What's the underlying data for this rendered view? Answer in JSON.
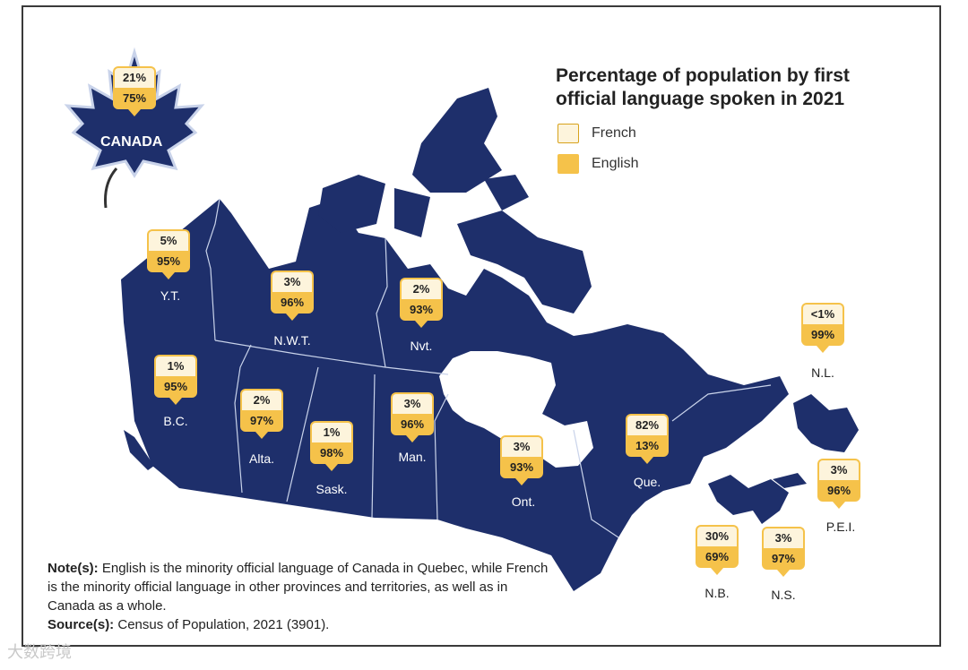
{
  "title": "Percentage of population by first official language spoken in 2021",
  "legend": [
    {
      "label": "French",
      "color": "#fdf4dc"
    },
    {
      "label": "English",
      "color": "#f5c24a"
    }
  ],
  "colors": {
    "land": "#1e2f6b",
    "english": "#f5c24a",
    "french": "#fdf4dc"
  },
  "canada": {
    "label": "CANADA",
    "french": "21%",
    "english": "75%"
  },
  "regions": [
    {
      "id": "yt",
      "label": "Y.T.",
      "french": "5%",
      "english": "95%"
    },
    {
      "id": "nwt",
      "label": "N.W.T.",
      "french": "3%",
      "english": "96%"
    },
    {
      "id": "nvt",
      "label": "Nvt.",
      "french": "2%",
      "english": "93%"
    },
    {
      "id": "bc",
      "label": "B.C.",
      "french": "1%",
      "english": "95%"
    },
    {
      "id": "alta",
      "label": "Alta.",
      "french": "2%",
      "english": "97%"
    },
    {
      "id": "sask",
      "label": "Sask.",
      "french": "1%",
      "english": "98%"
    },
    {
      "id": "man",
      "label": "Man.",
      "french": "3%",
      "english": "96%"
    },
    {
      "id": "ont",
      "label": "Ont.",
      "french": "3%",
      "english": "93%"
    },
    {
      "id": "que",
      "label": "Que.",
      "french": "82%",
      "english": "13%"
    },
    {
      "id": "nl",
      "label": "N.L.",
      "french": "<1%",
      "english": "99%"
    },
    {
      "id": "pei",
      "label": "P.E.I.",
      "french": "3%",
      "english": "96%"
    },
    {
      "id": "nb",
      "label": "N.B.",
      "french": "30%",
      "english": "69%"
    },
    {
      "id": "ns",
      "label": "N.S.",
      "french": "3%",
      "english": "97%"
    }
  ],
  "note": {
    "note_label": "Note(s):",
    "note_text": "English is the minority official language of Canada in Quebec, while French is the minority official language in other provinces and territories, as well as in Canada as a whole.",
    "source_label": "Source(s):",
    "source_text": "Census of Population, 2021 (3901)."
  },
  "watermark": "大数跨境"
}
